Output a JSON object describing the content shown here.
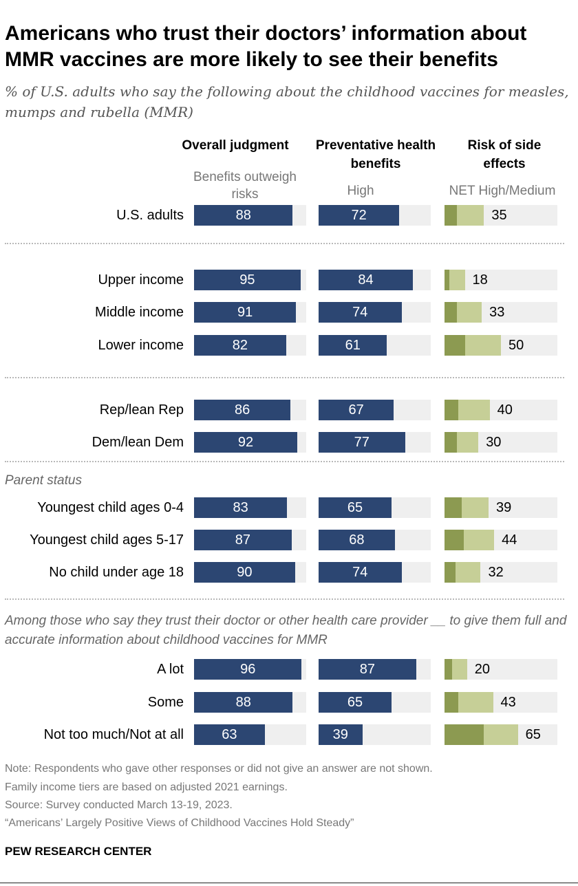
{
  "title": "Americans who trust their doctors’ information about MMR vaccines are more likely to see their benefits",
  "subtitle": "% of U.S. adults who say the following about the childhood vaccines for measles, mumps and rubella (MMR)",
  "columns": {
    "overall": {
      "header": "Overall judgment",
      "subheader": "Benefits outweigh risks"
    },
    "preventative": {
      "header": "Preventative health benefits",
      "subheader": "High"
    },
    "risk": {
      "header": "Risk of side effects",
      "subheader": "NET High/Medium"
    }
  },
  "group_labels": {
    "parent_status": "Parent status",
    "trust": "Among those who say they trust their doctor or other health care provider __ to give them full and accurate information about childhood vaccines for MMR"
  },
  "chart_data": {
    "type": "bar",
    "categories": [
      "U.S. adults",
      "Upper income",
      "Middle income",
      "Lower income",
      "Rep/lean Rep",
      "Dem/lean Dem",
      "Youngest child ages 0-4",
      "Youngest child ages 5-17",
      "No child under age 18",
      "A lot",
      "Some",
      "Not too much/Not at all"
    ],
    "series": [
      {
        "name": "Overall judgment: Benefits outweigh risks",
        "values": [
          88,
          95,
          91,
          82,
          86,
          92,
          83,
          87,
          90,
          96,
          88,
          63
        ]
      },
      {
        "name": "Preventative health benefits: High",
        "values": [
          72,
          84,
          74,
          61,
          67,
          77,
          65,
          68,
          74,
          87,
          65,
          39
        ]
      },
      {
        "name": "Risk of side effects: NET High/Medium",
        "values": [
          35,
          18,
          33,
          50,
          40,
          30,
          39,
          44,
          32,
          20,
          43,
          65
        ]
      }
    ],
    "risk_high": [
      11,
      4,
      11,
      18,
      12,
      11,
      15,
      17,
      10,
      7,
      12,
      35
    ],
    "ylim": [
      0,
      100
    ],
    "colors": {
      "overall": "#2c4672",
      "preventative": "#2c4672",
      "risk_high": "#8c9a51",
      "risk_medium": "#c6cf97",
      "track": "#efefef"
    }
  },
  "notes": [
    "Note: Respondents who gave other responses or did not give an answer are not shown.",
    "Family income tiers are based on adjusted 2021 earnings.",
    "Source: Survey conducted March 13-19, 2023.",
    "“Americans’ Largely Positive Views of Childhood Vaccines Hold Steady”"
  ],
  "brand": "PEW RESEARCH CENTER"
}
